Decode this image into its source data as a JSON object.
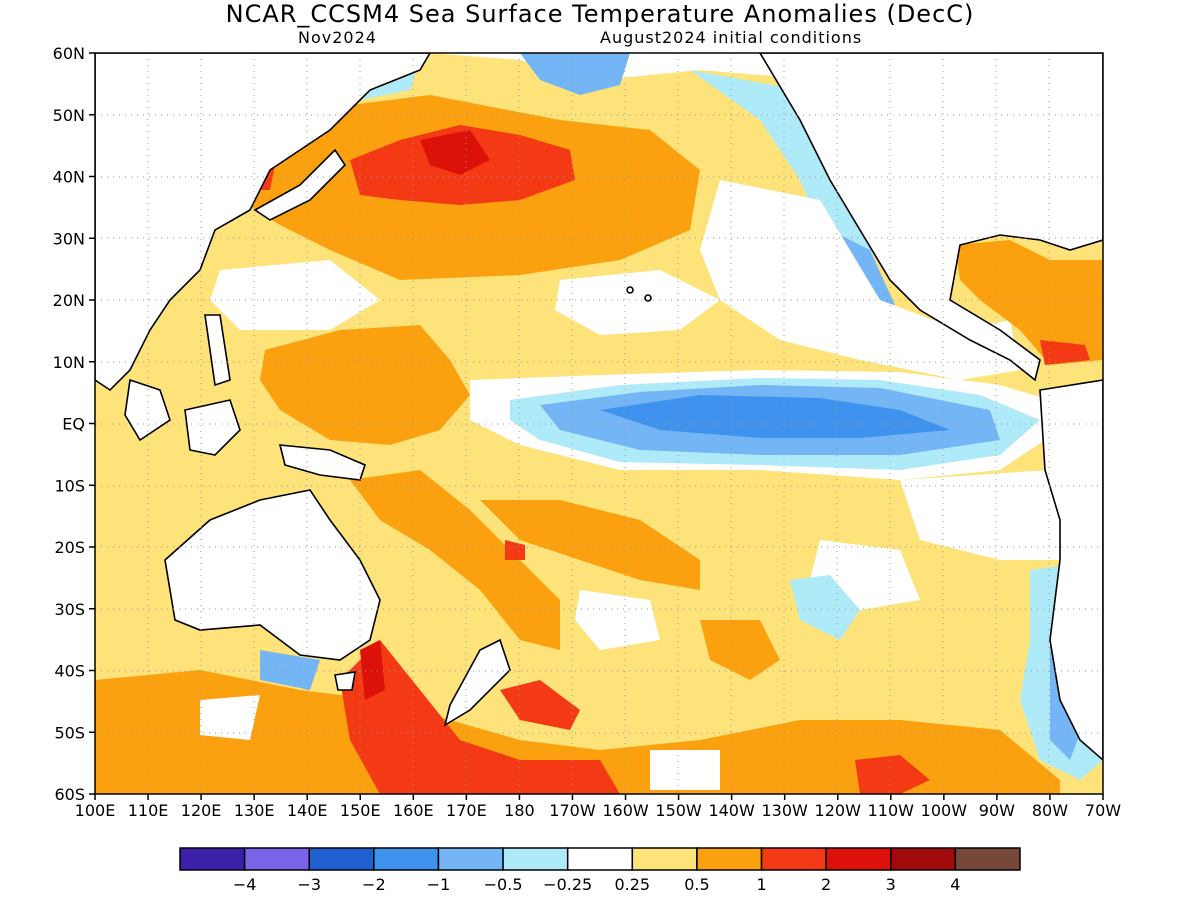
{
  "title": "NCAR_CCSM4 Sea Surface Temperature Anomalies (DecC)",
  "subtitle_left": "Nov2024",
  "subtitle_right": "August2024 initial conditions",
  "lat_labels": [
    "60N",
    "50N",
    "40N",
    "30N",
    "20N",
    "10N",
    "EQ",
    "10S",
    "20S",
    "30S",
    "40S",
    "50S",
    "60S"
  ],
  "lon_labels": [
    "100E",
    "110E",
    "120E",
    "130E",
    "140E",
    "150E",
    "160E",
    "170E",
    "180",
    "170W",
    "160W",
    "150W",
    "140W",
    "130W",
    "120W",
    "110W",
    "100W",
    "90W",
    "80W",
    "70W"
  ],
  "colorbar": {
    "colors": [
      "#3b1fa8",
      "#7b63e8",
      "#1f5fcf",
      "#3f93ef",
      "#74b6f5",
      "#aeeaf7",
      "#ffffff",
      "#fde37a",
      "#fba10f",
      "#f33a14",
      "#dc120a",
      "#a00a0a",
      "#77483a"
    ],
    "labels": [
      "−4",
      "−3",
      "−2",
      "−1",
      "−0.5",
      "−0.25",
      "0.25",
      "0.5",
      "1",
      "2",
      "3",
      "4"
    ]
  },
  "map_extent": {
    "lon": [
      100,
      290
    ],
    "lat": [
      -60,
      60
    ]
  }
}
